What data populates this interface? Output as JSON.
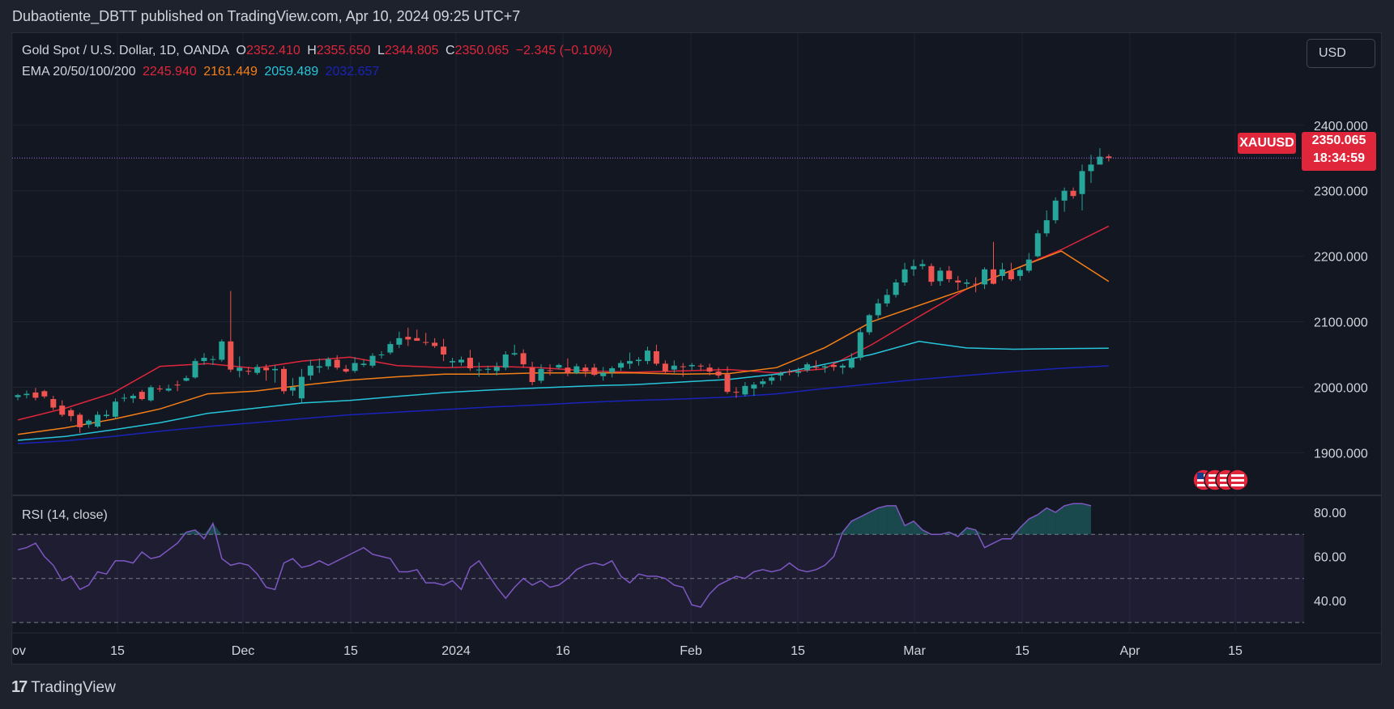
{
  "publisher": "Dubaotiente_DBTT published on TradingView.com, Apr 10, 2024 09:25 UTC+7",
  "currency_button": "USD",
  "footer_brand": "TradingView",
  "legend": {
    "title": "Gold Spot / U.S. Dollar, 1D, OANDA",
    "open_label": "O",
    "open": "2352.410",
    "high_label": "H",
    "high": "2355.650",
    "low_label": "L",
    "low": "2344.805",
    "close_label": "C",
    "close": "2350.065",
    "change": "−2.345 (−0.10%)",
    "ema_title": "EMA 20/50/100/200",
    "ema20": "2245.940",
    "ema50": "2161.449",
    "ema100": "2059.489",
    "ema200": "2032.657",
    "rsi_title": "RSI (14, close)"
  },
  "symbol_tag": "XAUUSD",
  "last_price": "2350.065",
  "countdown": "18:34:59",
  "colors": {
    "up": "#26a69a",
    "down": "#ef5350",
    "ema20": "#e0263b",
    "ema50": "#f57f17",
    "ema100": "#26c6da",
    "ema200": "#1a23b8",
    "rsi": "#7e57c2",
    "price_tag": "#e0263b"
  },
  "chart_data": [
    {
      "type": "candlestick",
      "title": "Gold Spot / U.S. Dollar, 1D, OANDA",
      "ylim": [
        1835,
        2485
      ],
      "y_ticks": [
        "1900.000",
        "2000.000",
        "2100.000",
        "2200.000",
        "2300.000",
        "2400.000"
      ],
      "x_tick_labels": [
        "ov",
        "15",
        "Dec",
        "15",
        "2024",
        "16",
        "Feb",
        "15",
        "Mar",
        "15",
        "Apr",
        "15"
      ],
      "candles": [
        [
          1985,
          1990,
          1980,
          1988
        ],
        [
          1988,
          1995,
          1983,
          1990
        ],
        [
          1992,
          1999,
          1980,
          1984
        ],
        [
          1994,
          1996,
          1983,
          1986
        ],
        [
          1982,
          1987,
          1965,
          1969
        ],
        [
          1972,
          1980,
          1955,
          1958
        ],
        [
          1965,
          1968,
          1948,
          1956
        ],
        [
          1958,
          1961,
          1930,
          1939
        ],
        [
          1943,
          1951,
          1938,
          1949
        ],
        [
          1940,
          1963,
          1938,
          1958
        ],
        [
          1956,
          1965,
          1953,
          1958
        ],
        [
          1955,
          1983,
          1952,
          1978
        ],
        [
          1984,
          1990,
          1978,
          1984
        ],
        [
          1983,
          1990,
          1976,
          1987
        ],
        [
          1993,
          1996,
          1980,
          1982
        ],
        [
          1980,
          2003,
          1978,
          2000
        ],
        [
          1998,
          2003,
          1993,
          1997
        ],
        [
          1995,
          2004,
          1993,
          1998
        ],
        [
          2004,
          2010,
          1994,
          2003
        ],
        [
          2010,
          2018,
          2009,
          2014
        ],
        [
          2015,
          2044,
          2013,
          2040
        ],
        [
          2040,
          2052,
          2034,
          2045
        ],
        [
          2042,
          2048,
          2034,
          2043
        ],
        [
          2042,
          2073,
          2039,
          2070
        ],
        [
          2070,
          2147,
          2023,
          2027
        ],
        [
          2025,
          2047,
          2015,
          2030
        ],
        [
          2025,
          2031,
          2019,
          2024
        ],
        [
          2022,
          2035,
          2019,
          2031
        ],
        [
          2030,
          2035,
          2010,
          2026
        ],
        [
          2026,
          2034,
          2007,
          2028
        ],
        [
          2028,
          2032,
          1990,
          1994
        ],
        [
          1995,
          2014,
          1987,
          2000
        ],
        [
          1983,
          2028,
          1976,
          2016
        ],
        [
          2018,
          2042,
          2011,
          2033
        ],
        [
          2030,
          2044,
          2022,
          2032
        ],
        [
          2032,
          2046,
          2027,
          2043
        ],
        [
          2042,
          2049,
          2027,
          2030
        ],
        [
          2028,
          2034,
          2022,
          2024
        ],
        [
          2025,
          2046,
          2022,
          2037
        ],
        [
          2034,
          2042,
          2031,
          2036
        ],
        [
          2033,
          2052,
          2030,
          2048
        ],
        [
          2049,
          2055,
          2044,
          2050
        ],
        [
          2053,
          2070,
          2050,
          2066
        ],
        [
          2065,
          2085,
          2060,
          2075
        ],
        [
          2077,
          2091,
          2063,
          2073
        ],
        [
          2075,
          2088,
          2071,
          2071
        ],
        [
          2069,
          2083,
          2064,
          2068
        ],
        [
          2068,
          2075,
          2060,
          2063
        ],
        [
          2062,
          2074,
          2040,
          2050
        ],
        [
          2038,
          2045,
          2030,
          2040
        ],
        [
          2038,
          2047,
          2033,
          2042
        ],
        [
          2045,
          2057,
          2025,
          2029
        ],
        [
          2027,
          2038,
          2016,
          2027
        ],
        [
          2028,
          2033,
          2020,
          2028
        ],
        [
          2025,
          2038,
          2018,
          2031
        ],
        [
          2030,
          2055,
          2026,
          2050
        ],
        [
          2050,
          2065,
          2048,
          2052
        ],
        [
          2052,
          2058,
          2030,
          2035
        ],
        [
          2030,
          2039,
          2003,
          2008
        ],
        [
          2010,
          2035,
          2006,
          2028
        ],
        [
          2026,
          2035,
          2018,
          2025
        ],
        [
          2030,
          2036,
          2027,
          2034
        ],
        [
          2030,
          2044,
          2017,
          2022
        ],
        [
          2022,
          2036,
          2020,
          2032
        ],
        [
          2030,
          2035,
          2016,
          2024
        ],
        [
          2030,
          2036,
          2017,
          2019
        ],
        [
          2017,
          2031,
          2010,
          2022
        ],
        [
          2023,
          2032,
          2015,
          2029
        ],
        [
          2030,
          2041,
          2025,
          2037
        ],
        [
          2036,
          2053,
          2028,
          2040
        ],
        [
          2040,
          2046,
          2033,
          2042
        ],
        [
          2040,
          2062,
          2035,
          2056
        ],
        [
          2055,
          2065,
          2033,
          2036
        ],
        [
          2036,
          2041,
          2020,
          2024
        ],
        [
          2027,
          2041,
          2022,
          2033
        ],
        [
          2032,
          2037,
          2016,
          2031
        ],
        [
          2032,
          2037,
          2026,
          2034
        ],
        [
          2033,
          2036,
          2025,
          2032
        ],
        [
          2030,
          2036,
          2018,
          2024
        ],
        [
          2024,
          2030,
          2014,
          2018
        ],
        [
          2020,
          2032,
          1990,
          1993
        ],
        [
          1993,
          2000,
          1984,
          1992
        ],
        [
          1989,
          2008,
          1986,
          2002
        ],
        [
          1998,
          2008,
          1987,
          2004
        ],
        [
          2005,
          2013,
          2000,
          2009
        ],
        [
          2010,
          2019,
          2004,
          2015
        ],
        [
          2018,
          2024,
          2010,
          2021
        ],
        [
          2024,
          2028,
          2018,
          2023
        ],
        [
          2022,
          2030,
          2016,
          2024
        ],
        [
          2026,
          2038,
          2023,
          2035
        ],
        [
          2031,
          2041,
          2026,
          2030
        ],
        [
          2030,
          2035,
          2022,
          2032
        ],
        [
          2034,
          2039,
          2025,
          2031
        ],
        [
          2030,
          2036,
          2020,
          2033
        ],
        [
          2030,
          2052,
          2028,
          2044
        ],
        [
          2045,
          2090,
          2041,
          2084
        ],
        [
          2084,
          2112,
          2080,
          2110
        ],
        [
          2110,
          2135,
          2105,
          2128
        ],
        [
          2128,
          2150,
          2123,
          2141
        ],
        [
          2141,
          2165,
          2137,
          2160
        ],
        [
          2160,
          2190,
          2155,
          2180
        ],
        [
          2180,
          2195,
          2170,
          2185
        ],
        [
          2185,
          2195,
          2180,
          2188
        ],
        [
          2185,
          2189,
          2155,
          2161
        ],
        [
          2162,
          2183,
          2155,
          2178
        ],
        [
          2178,
          2185,
          2160,
          2165
        ],
        [
          2163,
          2170,
          2148,
          2160
        ],
        [
          2158,
          2165,
          2152,
          2160
        ],
        [
          2158,
          2168,
          2145,
          2157
        ],
        [
          2157,
          2183,
          2150,
          2180
        ],
        [
          2180,
          2222,
          2157,
          2158
        ],
        [
          2170,
          2190,
          2163,
          2180
        ],
        [
          2178,
          2190,
          2162,
          2165
        ],
        [
          2170,
          2183,
          2163,
          2179
        ],
        [
          2178,
          2205,
          2175,
          2195
        ],
        [
          2200,
          2240,
          2198,
          2235
        ],
        [
          2235,
          2270,
          2230,
          2255
        ],
        [
          2255,
          2290,
          2250,
          2285
        ],
        [
          2285,
          2305,
          2268,
          2300
        ],
        [
          2300,
          2305,
          2288,
          2292
        ],
        [
          2295,
          2340,
          2270,
          2330
        ],
        [
          2330,
          2355,
          2312,
          2340
        ],
        [
          2340,
          2365,
          2340,
          2352
        ],
        [
          2352.41,
          2355.65,
          2344.805,
          2350.065
        ]
      ],
      "ema": [
        {
          "name": "EMA 20",
          "values": [
            1950,
            1968,
            1991,
            2032,
            2036,
            2029,
            2040,
            2046,
            2033,
            2030,
            2032,
            2030,
            2025,
            2023,
            2025,
            2027,
            2022,
            2028,
            2065,
            2108,
            2150,
            2180,
            2210,
            2246
          ]
        },
        {
          "name": "EMA 50",
          "values": [
            1928,
            1938,
            1951,
            1967,
            1990,
            1994,
            2003,
            2011,
            2016,
            2020,
            2020,
            2022,
            2022,
            2022,
            2020,
            2021,
            2030,
            2060,
            2100,
            2125,
            2150,
            2180,
            2208,
            2161.449
          ]
        },
        {
          "name": "EMA 100",
          "values": [
            1919,
            1925,
            1935,
            1946,
            1960,
            1968,
            1976,
            1980,
            1986,
            1992,
            1996,
            1999,
            2002,
            2004,
            2008,
            2012,
            2020,
            2035,
            2050,
            2070,
            2060,
            2058,
            2059,
            2059.489
          ]
        },
        {
          "name": "EMA 200",
          "values": [
            1914,
            1918,
            1925,
            1933,
            1940,
            1946,
            1952,
            1958,
            1962,
            1966,
            1970,
            1973,
            1977,
            1980,
            1982,
            1985,
            1990,
            1998,
            2005,
            2012,
            2018,
            2024,
            2029,
            2032.657
          ]
        }
      ]
    },
    {
      "type": "line",
      "title": "RSI (14, close)",
      "ylim": [
        26,
        87
      ],
      "y_ticks": [
        "40.00",
        "60.00",
        "80.00"
      ],
      "bands": [
        30,
        50,
        70
      ],
      "values": [
        63,
        64,
        66,
        60,
        56,
        49,
        51,
        45,
        47,
        53,
        52,
        58,
        58,
        57,
        62,
        59,
        60,
        63,
        66,
        71,
        72,
        68,
        75,
        59,
        56,
        57,
        56,
        52,
        46,
        45,
        57,
        59,
        55,
        56,
        58,
        56,
        58,
        60,
        62,
        64,
        61,
        60,
        59,
        53,
        53,
        54,
        48,
        48,
        47,
        49,
        45,
        55,
        58,
        52,
        46,
        41,
        46,
        50,
        47,
        49,
        46,
        47,
        50,
        54,
        56,
        57,
        56,
        58,
        51,
        48,
        52,
        51,
        51,
        50,
        47,
        46,
        38,
        37,
        43,
        47,
        49,
        51,
        50,
        53,
        54,
        53,
        54,
        57,
        54,
        53,
        54,
        56,
        60,
        71,
        76,
        78,
        80,
        82,
        83,
        83,
        74,
        76,
        72,
        70,
        70,
        71,
        69,
        73,
        72,
        64,
        66,
        68,
        68,
        73,
        77,
        79,
        82,
        80,
        83,
        84,
        84,
        83
      ]
    }
  ]
}
